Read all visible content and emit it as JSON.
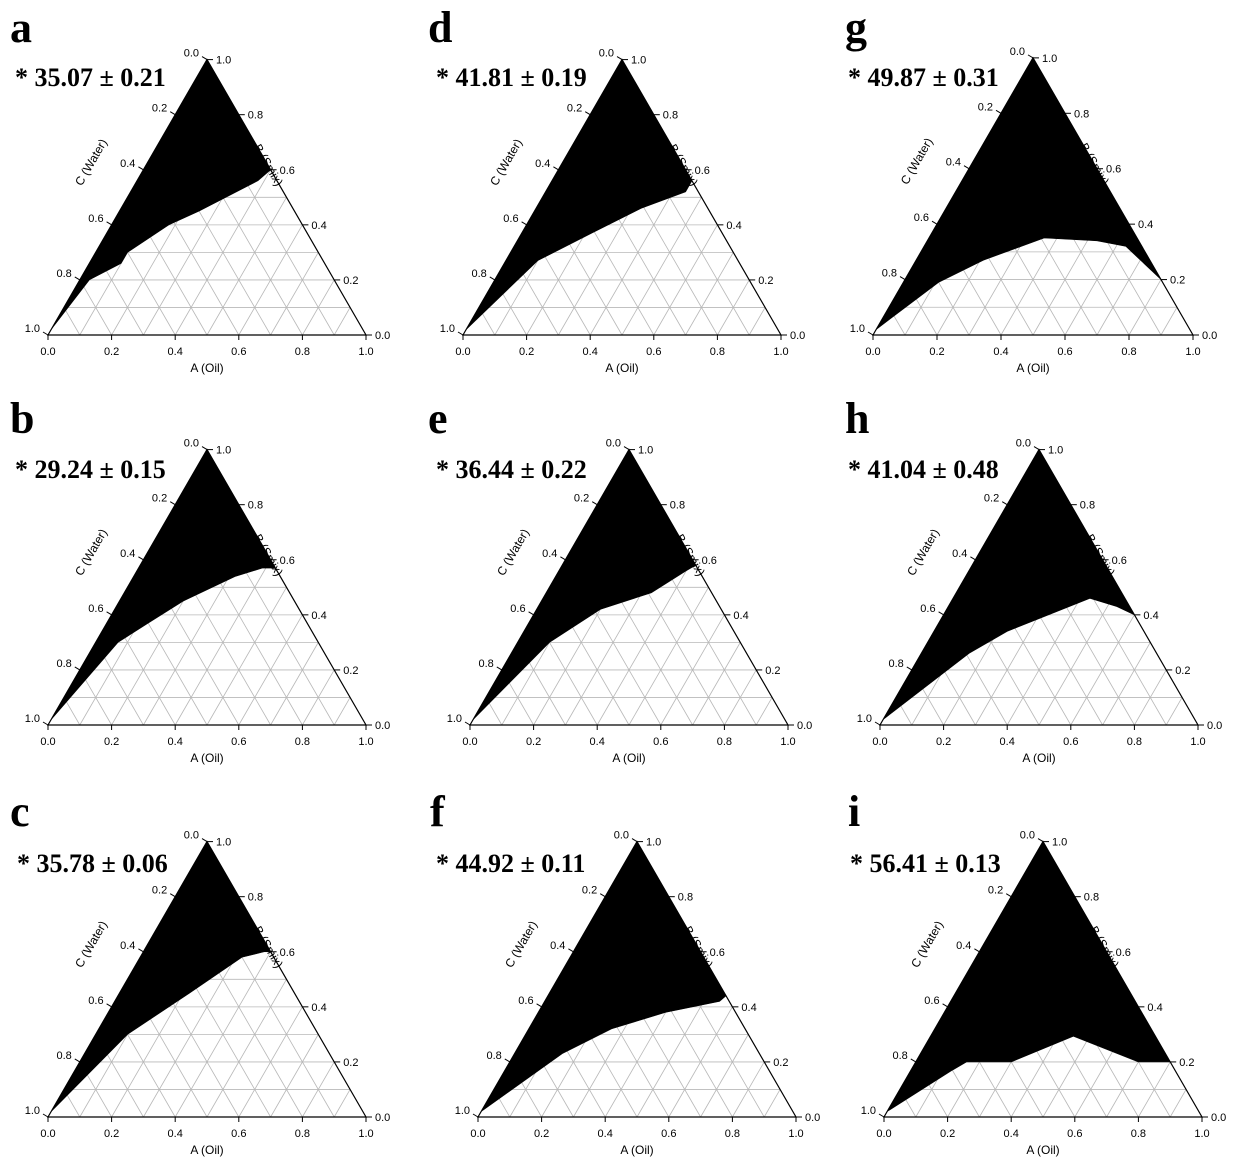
{
  "chart_data": [
    {
      "type": "ternary",
      "panel": "a",
      "value_label": "* 35.07 ± 0.21",
      "axes": {
        "a": "A (Oil)",
        "b": "B (Smix)",
        "c": "C (Water)"
      },
      "ticks": [
        "0.0",
        "0.2",
        "0.4",
        "0.6",
        "0.8",
        "1.0"
      ],
      "region": [
        [
          0,
          0.02,
          0.98
        ],
        [
          0.03,
          0.2,
          0.77
        ],
        [
          0.1,
          0.26,
          0.64
        ],
        [
          0.1,
          0.3,
          0.6
        ],
        [
          0.14,
          0.35,
          0.51
        ],
        [
          0.18,
          0.4,
          0.42
        ],
        [
          0.25,
          0.45,
          0.3
        ],
        [
          0.38,
          0.56,
          0.06
        ],
        [
          0.4,
          0.6,
          0
        ],
        [
          0,
          1,
          0
        ],
        [
          0,
          0.46,
          0.54
        ],
        [
          0,
          0.02,
          0.98
        ]
      ]
    },
    {
      "type": "ternary",
      "panel": "b",
      "value_label": "* 29.24 ± 0.15",
      "axes": {
        "a": "A (Oil)",
        "b": "B (Smix)",
        "c": "C (Water)"
      },
      "ticks": [
        "0.0",
        "0.2",
        "0.4",
        "0.6",
        "0.8",
        "1.0"
      ],
      "region": [
        [
          0,
          0.02,
          0.98
        ],
        [
          0.07,
          0.3,
          0.63
        ],
        [
          0.13,
          0.37,
          0.5
        ],
        [
          0.2,
          0.45,
          0.35
        ],
        [
          0.32,
          0.54,
          0.14
        ],
        [
          0.39,
          0.57,
          0.04
        ],
        [
          0.43,
          0.57,
          0
        ],
        [
          0,
          1,
          0
        ],
        [
          0,
          0.5,
          0.5
        ],
        [
          0,
          0.02,
          0.98
        ]
      ]
    },
    {
      "type": "ternary",
      "panel": "c",
      "value_label": "* 35.78 ± 0.06",
      "axes": {
        "a": "A (Oil)",
        "b": "B (Smix)",
        "c": "C (Water)"
      },
      "ticks": [
        "0.0",
        "0.2",
        "0.4",
        "0.6",
        "0.8",
        "1.0"
      ],
      "region": [
        [
          0,
          0.02,
          0.98
        ],
        [
          0.1,
          0.3,
          0.6
        ],
        [
          0.22,
          0.45,
          0.33
        ],
        [
          0.32,
          0.58,
          0.1
        ],
        [
          0.38,
          0.6,
          0.02
        ],
        [
          0.4,
          0.6,
          0
        ],
        [
          0,
          1,
          0
        ],
        [
          0,
          0.48,
          0.52
        ],
        [
          0,
          0.02,
          0.98
        ]
      ]
    },
    {
      "type": "ternary",
      "panel": "d",
      "value_label": "* 41.81 ± 0.19",
      "axes": {
        "a": "A (Oil)",
        "b": "B (Smix)",
        "c": "C (Water)"
      },
      "ticks": [
        "0.0",
        "0.2",
        "0.4",
        "0.6",
        "0.8",
        "1.0"
      ],
      "region": [
        [
          0,
          0.02,
          0.98
        ],
        [
          0.1,
          0.27,
          0.63
        ],
        [
          0.22,
          0.37,
          0.41
        ],
        [
          0.33,
          0.46,
          0.21
        ],
        [
          0.44,
          0.52,
          0.04
        ],
        [
          0.44,
          0.56,
          0
        ],
        [
          0,
          1,
          0
        ],
        [
          0,
          0.42,
          0.58
        ],
        [
          0,
          0.02,
          0.98
        ]
      ]
    },
    {
      "type": "ternary",
      "panel": "e",
      "value_label": "* 36.44 ± 0.22",
      "axes": {
        "a": "A (Oil)",
        "b": "B (Smix)",
        "c": "C (Water)"
      },
      "ticks": [
        "0.0",
        "0.2",
        "0.4",
        "0.6",
        "0.8",
        "1.0"
      ],
      "region": [
        [
          0,
          0.02,
          0.98
        ],
        [
          0.1,
          0.3,
          0.6
        ],
        [
          0.2,
          0.42,
          0.38
        ],
        [
          0.33,
          0.48,
          0.19
        ],
        [
          0.4,
          0.56,
          0.04
        ],
        [
          0.42,
          0.58,
          0
        ],
        [
          0,
          1,
          0
        ],
        [
          0,
          0.45,
          0.55
        ],
        [
          0,
          0.02,
          0.98
        ]
      ]
    },
    {
      "type": "ternary",
      "panel": "f",
      "value_label": "* 44.92 ± 0.11",
      "axes": {
        "a": "A (Oil)",
        "b": "B (Smix)",
        "c": "C (Water)"
      },
      "ticks": [
        "0.0",
        "0.2",
        "0.4",
        "0.6",
        "0.8",
        "1.0"
      ],
      "region": [
        [
          0,
          0.02,
          0.98
        ],
        [
          0.15,
          0.23,
          0.62
        ],
        [
          0.26,
          0.32,
          0.42
        ],
        [
          0.4,
          0.38,
          0.22
        ],
        [
          0.55,
          0.42,
          0.03
        ],
        [
          0.56,
          0.44,
          0
        ],
        [
          0,
          1,
          0
        ],
        [
          0,
          0.38,
          0.62
        ],
        [
          0,
          0.02,
          0.98
        ]
      ]
    },
    {
      "type": "ternary",
      "panel": "g",
      "value_label": "* 49.87 ± 0.31",
      "axes": {
        "a": "A (Oil)",
        "b": "B (Smix)",
        "c": "C (Water)"
      },
      "ticks": [
        "0.0",
        "0.2",
        "0.4",
        "0.6",
        "0.8",
        "1.0"
      ],
      "region": [
        [
          0,
          0.02,
          0.98
        ],
        [
          0.11,
          0.19,
          0.7
        ],
        [
          0.21,
          0.27,
          0.52
        ],
        [
          0.36,
          0.35,
          0.29
        ],
        [
          0.53,
          0.34,
          0.13
        ],
        [
          0.63,
          0.32,
          0.05
        ],
        [
          0.8,
          0.2,
          0
        ],
        [
          0,
          1,
          0
        ],
        [
          0,
          0.32,
          0.68
        ],
        [
          0,
          0.02,
          0.98
        ]
      ]
    },
    {
      "type": "ternary",
      "panel": "h",
      "value_label": "* 41.04 ± 0.48",
      "axes": {
        "a": "A (Oil)",
        "b": "B (Smix)",
        "c": "C (Water)"
      },
      "ticks": [
        "0.0",
        "0.2",
        "0.4",
        "0.6",
        "0.8",
        "1.0"
      ],
      "region": [
        [
          0,
          0.02,
          0.98
        ],
        [
          0.15,
          0.26,
          0.59
        ],
        [
          0.23,
          0.34,
          0.43
        ],
        [
          0.33,
          0.4,
          0.27
        ],
        [
          0.43,
          0.46,
          0.11
        ],
        [
          0.53,
          0.43,
          0.04
        ],
        [
          0.6,
          0.4,
          0
        ],
        [
          0,
          1,
          0
        ],
        [
          0,
          0.4,
          0.6
        ],
        [
          0,
          0.02,
          0.98
        ]
      ]
    },
    {
      "type": "ternary",
      "panel": "i",
      "value_label": "* 56.41 ± 0.13",
      "axes": {
        "a": "A (Oil)",
        "b": "B (Smix)",
        "c": "C (Water)"
      },
      "ticks": [
        "0.0",
        "0.2",
        "0.4",
        "0.6",
        "0.8",
        "1.0"
      ],
      "region": [
        [
          0,
          0.02,
          0.98
        ],
        [
          0.13,
          0.17,
          0.7
        ],
        [
          0.16,
          0.2,
          0.64
        ],
        [
          0.3,
          0.2,
          0.5
        ],
        [
          0.46,
          0.3,
          0.24
        ],
        [
          0.35,
          0.33,
          0.32
        ],
        [
          0.7,
          0.2,
          0.1
        ],
        [
          0.8,
          0.2,
          0
        ],
        [
          0,
          1,
          0
        ],
        [
          0,
          0.3,
          0.7
        ],
        [
          0,
          0.02,
          0.98
        ]
      ]
    }
  ]
}
